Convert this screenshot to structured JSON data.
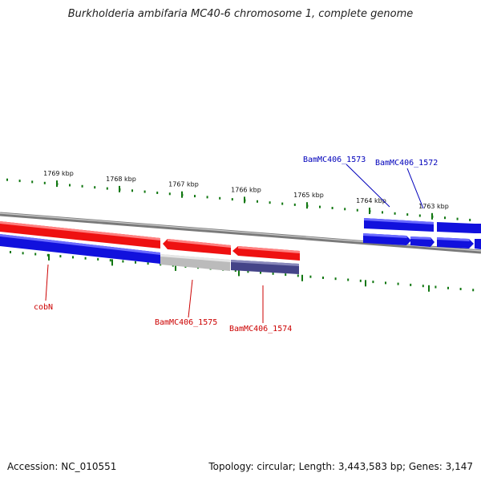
{
  "title": "Burkholderia ambifaria MC40-6 chromosome 1, complete genome",
  "footer": {
    "accession": "Accession: NC_010551",
    "summary": "Topology: circular; Length: 3,443,583 bp; Genes: 3,147"
  },
  "colors": {
    "forward_gene": "#ee1111",
    "reverse_gene": "#1111dd",
    "pseudo_gene": "#bbbbbb",
    "rna_gene": "#444488",
    "backbone": "#777777",
    "tick": "#117711",
    "red_label": "#cc0000",
    "blue_label": "#0000bb"
  },
  "ticks": [
    {
      "label": "1769 kbp"
    },
    {
      "label": "1768 kbp"
    },
    {
      "label": "1767 kbp"
    },
    {
      "label": "1766 kbp"
    },
    {
      "label": "1765 kbp"
    },
    {
      "label": "1764 kbp"
    },
    {
      "label": "1763 kbp"
    }
  ],
  "genes": [
    {
      "label": "cobN",
      "color": "red"
    },
    {
      "label": "BamMC406_1575",
      "color": "red"
    },
    {
      "label": "BamMC406_1574",
      "color": "red"
    },
    {
      "label": "BamMC406_1573",
      "color": "blue"
    },
    {
      "label": "BamMC406_1572",
      "color": "blue"
    }
  ]
}
